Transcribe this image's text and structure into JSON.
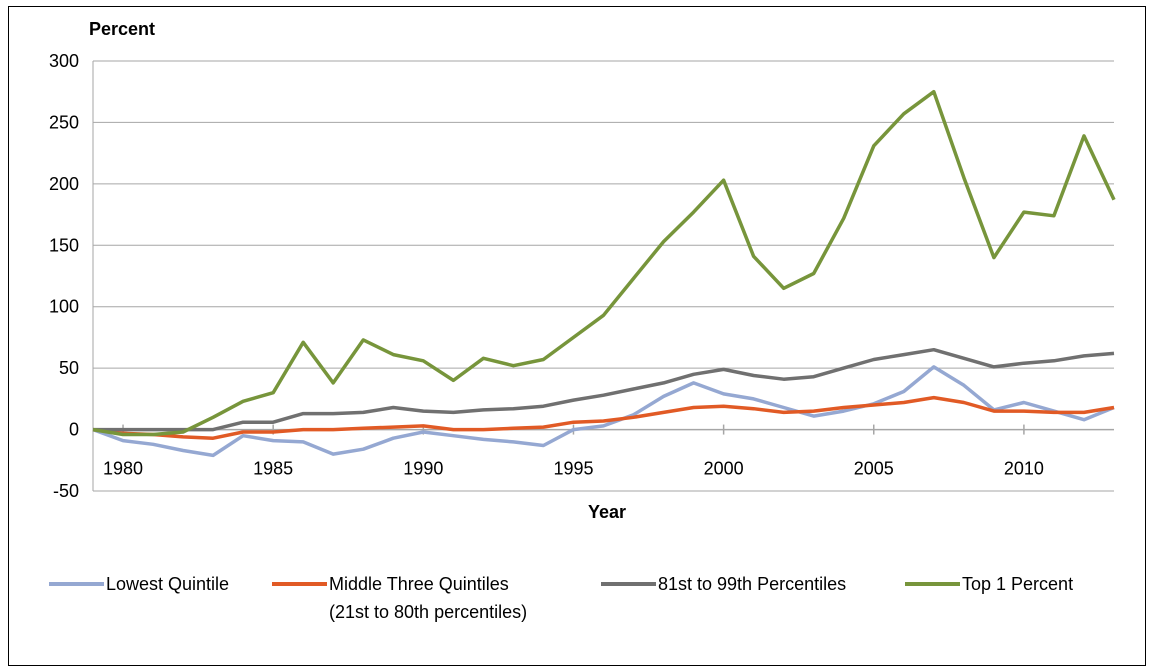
{
  "chart_data": {
    "type": "line",
    "title": "",
    "ylabel": "Percent",
    "xlabel": "Year",
    "ylim": [
      -50,
      300
    ],
    "yticks": [
      -50,
      0,
      50,
      100,
      150,
      200,
      250,
      300
    ],
    "xlim": [
      1979,
      2013
    ],
    "xticks": [
      1980,
      1985,
      1990,
      1995,
      2000,
      2005,
      2010
    ],
    "grid": "horizontal",
    "legend_position": "bottom",
    "x": [
      1979,
      1980,
      1981,
      1982,
      1983,
      1984,
      1985,
      1986,
      1987,
      1988,
      1989,
      1990,
      1991,
      1992,
      1993,
      1994,
      1995,
      1996,
      1997,
      1998,
      1999,
      2000,
      2001,
      2002,
      2003,
      2004,
      2005,
      2006,
      2007,
      2008,
      2009,
      2010,
      2011,
      2012,
      2013
    ],
    "series": [
      {
        "name": "Lowest Quintile",
        "color": "#95A8D2",
        "values": [
          0,
          -9,
          -12,
          -17,
          -21,
          -5,
          -9,
          -10,
          -20,
          -16,
          -7,
          -2,
          -5,
          -8,
          -10,
          -13,
          0,
          3,
          12,
          27,
          38,
          29,
          25,
          18,
          11,
          15,
          21,
          31,
          51,
          36,
          16,
          22,
          15,
          8,
          18
        ]
      },
      {
        "name": "Middle Three Quintiles",
        "name_line2": "(21st to 80th percentiles)",
        "color": "#E15A25",
        "values": [
          0,
          -3,
          -4,
          -6,
          -7,
          -2,
          -2,
          0,
          0,
          1,
          2,
          3,
          0,
          0,
          1,
          2,
          6,
          7,
          10,
          14,
          18,
          19,
          17,
          14,
          15,
          18,
          20,
          22,
          26,
          22,
          15,
          15,
          14,
          14,
          18
        ]
      },
      {
        "name": "81st to 99th Percentiles",
        "color": "#707070",
        "values": [
          0,
          0,
          0,
          0,
          0,
          6,
          6,
          13,
          13,
          14,
          18,
          15,
          14,
          16,
          17,
          19,
          24,
          28,
          33,
          38,
          45,
          49,
          44,
          41,
          43,
          50,
          57,
          61,
          65,
          58,
          51,
          54,
          56,
          60,
          62
        ]
      },
      {
        "name": "Top 1 Percent",
        "color": "#77953B",
        "values": [
          0,
          -4,
          -4,
          -2,
          10,
          23,
          30,
          71,
          38,
          73,
          61,
          56,
          40,
          58,
          52,
          57,
          75,
          93,
          123,
          153,
          177,
          203,
          141,
          115,
          127,
          172,
          231,
          257,
          275,
          205,
          140,
          177,
          174,
          239,
          187
        ]
      }
    ]
  }
}
